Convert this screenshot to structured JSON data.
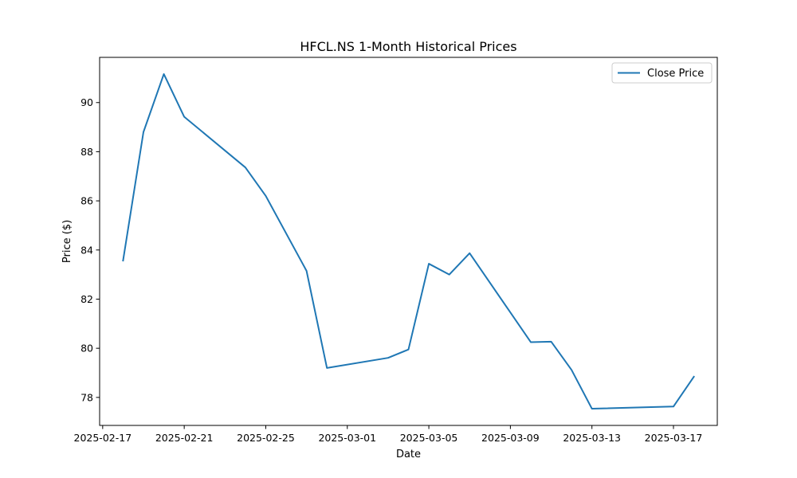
{
  "chart_data": {
    "type": "line",
    "title": "HFCL.NS 1-Month Historical Prices",
    "xlabel": "Date",
    "ylabel": "Price ($)",
    "x": [
      "2025-02-18",
      "2025-02-19",
      "2025-02-20",
      "2025-02-21",
      "2025-02-24",
      "2025-02-25",
      "2025-02-27",
      "2025-02-28",
      "2025-03-03",
      "2025-03-04",
      "2025-03-05",
      "2025-03-06",
      "2025-03-07",
      "2025-03-10",
      "2025-03-11",
      "2025-03-12",
      "2025-03-13",
      "2025-03-17",
      "2025-03-18"
    ],
    "series": [
      {
        "name": "Close Price",
        "color": "#1f77b4",
        "values": [
          83.57,
          88.8,
          91.16,
          89.42,
          87.36,
          86.2,
          83.15,
          79.2,
          79.61,
          79.95,
          83.44,
          83.0,
          83.87,
          80.25,
          80.27,
          79.12,
          77.54,
          77.63,
          78.84
        ]
      }
    ],
    "xlim": [
      "2025-02-16T20:24",
      "2025-03-19T03:36"
    ],
    "ylim": [
      76.86,
      91.84
    ],
    "xticks": [
      "2025-02-17",
      "2025-02-21",
      "2025-02-25",
      "2025-03-01",
      "2025-03-05",
      "2025-03-09",
      "2025-03-13",
      "2025-03-17"
    ],
    "yticks": [
      78,
      80,
      82,
      84,
      86,
      88,
      90
    ],
    "grid": false,
    "legend": "upper right"
  }
}
